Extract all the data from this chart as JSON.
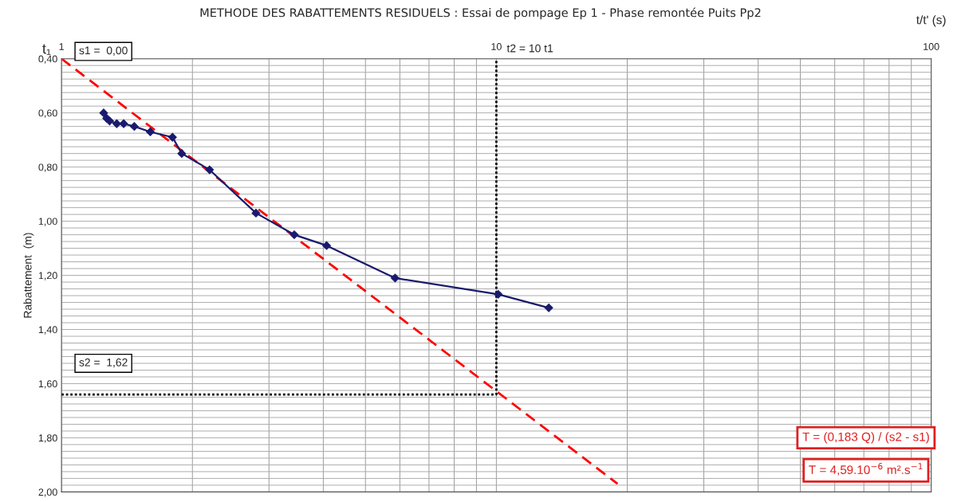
{
  "chart_data": {
    "type": "line",
    "title": "METHODE DES RABATTEMENTS RESIDUELS : Essai de pompage Ep 1 - Phase remontée Puits Pp2",
    "xlabel": "t/t' (s)",
    "ylabel": "Rabattement  (m)",
    "log": "x",
    "grid": true,
    "legend": false,
    "xlim": [
      1,
      100
    ],
    "xticks": [
      1,
      10,
      100
    ],
    "ylim": [
      2.0,
      0.4
    ],
    "yticks": [
      {
        "value": 0.4,
        "label": "0,40"
      },
      {
        "value": 0.6,
        "label": "0,60"
      },
      {
        "value": 0.8,
        "label": "0,80"
      },
      {
        "value": 1.0,
        "label": "1,00"
      },
      {
        "value": 1.2,
        "label": "1,20"
      },
      {
        "value": 1.4,
        "label": "1,40"
      },
      {
        "value": 1.6,
        "label": "1,60"
      },
      {
        "value": 1.8,
        "label": "1,80"
      },
      {
        "value": 2.0,
        "label": "2,00"
      }
    ],
    "series": [
      {
        "color": "#1a1a6e",
        "marker": "diamond",
        "line_style": "solid",
        "x": [
          1.25,
          1.27,
          1.29,
          1.34,
          1.39,
          1.47,
          1.6,
          1.8,
          1.89,
          2.19,
          2.8,
          3.43,
          4.07,
          5.85,
          10.1,
          13.2
        ],
        "values": [
          0.6,
          0.62,
          0.63,
          0.64,
          0.64,
          0.65,
          0.67,
          0.69,
          0.75,
          0.81,
          0.97,
          1.05,
          1.09,
          1.21,
          1.27,
          1.32
        ]
      },
      {
        "color": "#ff0000",
        "marker": "none",
        "line_style": "dashed",
        "x": [
          1,
          19
        ],
        "values": [
          0.4,
          1.97
        ]
      },
      {
        "color": "#000000",
        "marker": "none",
        "line_style": "dotted",
        "x": [
          1,
          10,
          10
        ],
        "values": [
          1.64,
          1.64,
          0.4
        ]
      }
    ],
    "annotations": [
      "t₁",
      "s1 =  0,00",
      "t2 = 10 t1",
      "s2 =  1,62",
      "T = (0,183 Q) / (s2 - s1)",
      "T = 4,59.10$^{−6}$ m².s$^{−1}$"
    ]
  }
}
